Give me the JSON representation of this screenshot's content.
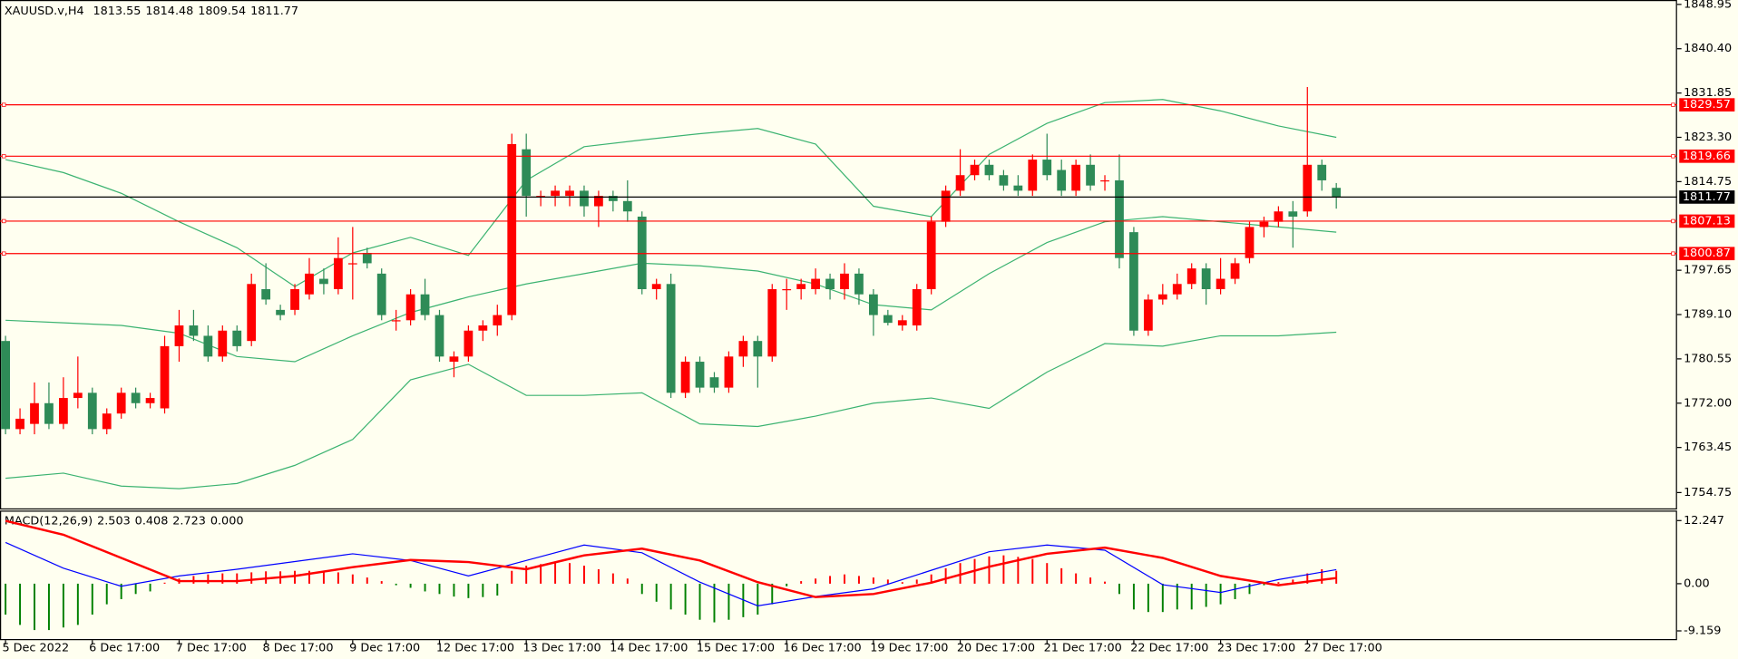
{
  "chart_data": [
    {
      "type": "candlestick",
      "title": "XAUUSD.v,H4",
      "categories": [
        "5 Dec 2022",
        null,
        null,
        null,
        null,
        null,
        "6 Dec 17:00",
        null,
        null,
        null,
        null,
        null,
        "7 Dec 17:00",
        null,
        null,
        null,
        null,
        null,
        "8 Dec 17:00",
        null,
        null,
        null,
        null,
        null,
        "9 Dec 17:00",
        null,
        null,
        null,
        null,
        null,
        "12 Dec 17:00",
        null,
        null,
        null,
        null,
        null,
        "13 Dec 17:00",
        null,
        null,
        null,
        null,
        null,
        "14 Dec 17:00",
        null,
        null,
        null,
        null,
        null,
        "15 Dec 17:00",
        null,
        null,
        null,
        null,
        null,
        "16 Dec 17:00",
        null,
        null,
        null,
        null,
        null,
        "19 Dec 17:00",
        null,
        null,
        null,
        null,
        null,
        "20 Dec 17:00",
        null,
        null,
        null,
        null,
        null,
        "21 Dec 17:00",
        null,
        null,
        null,
        null,
        null,
        "22 Dec 17:00",
        null,
        null,
        null,
        null,
        null,
        "23 Dec 17:00",
        null,
        null,
        null,
        null,
        null,
        "27 Dec 17:00",
        null,
        null
      ],
      "open": [
        1784,
        1767,
        1768,
        1772,
        1768,
        1773,
        1774,
        1767,
        1770,
        1774,
        1772,
        1771,
        1783,
        1787,
        1785,
        1781,
        1786,
        1784,
        1794,
        1790,
        1790,
        1793,
        1796,
        1794,
        1799,
        1801,
        1797,
        1788,
        1788,
        1793,
        1789,
        1780,
        1781,
        1786,
        1787,
        1789,
        1821,
        1812,
        1812,
        1812,
        1813,
        1810,
        1812,
        1811,
        1808,
        1794,
        1795,
        1774,
        1780,
        1777,
        1775,
        1781,
        1784,
        1781,
        1794,
        1794,
        1794,
        1796,
        1794,
        1797,
        1793,
        1789,
        1787,
        1787,
        1794,
        1807,
        1813,
        1816,
        1818,
        1816,
        1814,
        1813,
        1819,
        1817,
        1813,
        1818,
        1815,
        1815,
        1805,
        1786,
        1792,
        1793,
        1795,
        1798,
        1794,
        1796,
        1800,
        1806,
        1807,
        1809,
        1809,
        1818,
        1813.55
      ],
      "high": [
        1785,
        1771,
        1776,
        1776,
        1777,
        1781,
        1775,
        1771,
        1775,
        1775,
        1774,
        1785,
        1790,
        1790,
        1787,
        1787,
        1787,
        1797,
        1799,
        1791,
        1795,
        1800,
        1798,
        1804,
        1806,
        1802,
        1798,
        1790,
        1794,
        1796,
        1790,
        1782,
        1787,
        1788,
        1791,
        1824,
        1824,
        1813,
        1814,
        1814,
        1814,
        1813,
        1813,
        1815,
        1809,
        1796,
        1797,
        1781,
        1781,
        1778,
        1782,
        1785,
        1785,
        1795,
        1796,
        1796,
        1798,
        1797,
        1799,
        1798,
        1794,
        1790,
        1789,
        1795,
        1808,
        1814,
        1821,
        1819,
        1819,
        1817,
        1816,
        1820,
        1824,
        1819,
        1819,
        1820,
        1816,
        1820,
        1806,
        1793,
        1795,
        1797,
        1799,
        1799,
        1800,
        1800,
        1807,
        1808,
        1810,
        1811,
        1833,
        1819,
        1814.48
      ],
      "low": [
        1766,
        1766,
        1766,
        1767,
        1767,
        1771,
        1766,
        1766,
        1769,
        1771,
        1771,
        1770,
        1780,
        1784,
        1780,
        1780,
        1782,
        1783,
        1791,
        1788,
        1789,
        1792,
        1793,
        1793,
        1792,
        1798,
        1788,
        1786,
        1787,
        1788,
        1780,
        1777,
        1780,
        1784,
        1785,
        1788,
        1808,
        1810,
        1810,
        1810,
        1808,
        1806,
        1809,
        1807,
        1793,
        1792,
        1773,
        1773,
        1774,
        1774,
        1774,
        1779,
        1775,
        1780,
        1790,
        1792,
        1793,
        1792,
        1792,
        1791,
        1785,
        1787,
        1786,
        1786,
        1793,
        1806,
        1812,
        1815,
        1815,
        1813,
        1812,
        1812,
        1815,
        1812,
        1812,
        1813,
        1813,
        1798,
        1785,
        1785,
        1791,
        1792,
        1794,
        1791,
        1793,
        1795,
        1799,
        1804,
        1806,
        1802,
        1808,
        1813,
        1809.54
      ],
      "close": [
        1767,
        1769,
        1772,
        1768,
        1773,
        1774,
        1767,
        1770,
        1774,
        1772,
        1773,
        1783,
        1787,
        1785,
        1781,
        1786,
        1783,
        1795,
        1792,
        1789,
        1794,
        1797,
        1795,
        1800,
        1799,
        1799,
        1789,
        1788,
        1793,
        1789,
        1781,
        1781,
        1786,
        1787,
        1789,
        1822,
        1812,
        1812,
        1813,
        1813,
        1810,
        1812,
        1811,
        1809,
        1794,
        1795,
        1774,
        1780,
        1775,
        1775,
        1781,
        1784,
        1781,
        1794,
        1794,
        1795,
        1796,
        1794,
        1797,
        1793,
        1789,
        1787.5,
        1788,
        1794,
        1807,
        1813,
        1816,
        1818,
        1816,
        1814,
        1813,
        1819,
        1816,
        1813,
        1818,
        1814,
        1815,
        1800,
        1786,
        1792,
        1793,
        1795,
        1798,
        1794,
        1796,
        1799,
        1806,
        1807,
        1809,
        1808,
        1818,
        1815,
        1811.77
      ],
      "up_color": "#ff0000",
      "down_color": "#2e8b57",
      "ylim": [
        1751.7,
        1849.8
      ],
      "yticks": [
        1848.95,
        {
          "value": 1840.4,
          "label": "1840.40"
        },
        1831.85,
        {
          "value": 1823.3,
          "label": "1823.30"
        },
        1814.75,
        1797.65,
        {
          "value": 1789.1,
          "label": "1789.10"
        },
        1780.55,
        {
          "value": 1772,
          "label": "1772.00"
        },
        1763.45,
        1754.75
      ],
      "hlines": [
        1829.57,
        1819.66,
        1807.13,
        1800.87
      ],
      "hline_color": "#ff0000",
      "last_color": "#000000",
      "bands": {
        "color": "#3cb371",
        "x": [
          0,
          4,
          8,
          12,
          16,
          20,
          24,
          28,
          32,
          36,
          40,
          44,
          48,
          52,
          56,
          60,
          64,
          68,
          72,
          76,
          80,
          84,
          88,
          92
        ],
        "upper": [
          1819,
          1816.5,
          1812.5,
          1807,
          1802,
          1794.5,
          1801,
          1804,
          1800.5,
          1815,
          1821.5,
          1822.8,
          1824,
          1825,
          1822,
          1810,
          1808,
          1820,
          1826,
          1830,
          1830.6,
          1828.4,
          1825.5,
          1823.3
        ],
        "middle": [
          1788,
          1787.5,
          1787,
          1785.5,
          1781,
          1780,
          1785,
          1789.5,
          1792.5,
          1795,
          1797,
          1799,
          1798.5,
          1797.5,
          1795,
          1791,
          1790,
          1797,
          1803,
          1807,
          1808,
          1807,
          1806,
          1805
        ],
        "lower": [
          1757.5,
          1758.5,
          1756,
          1755.5,
          1756.5,
          1760,
          1765,
          1776.5,
          1779.5,
          1773.5,
          1773.5,
          1774,
          1768,
          1767.5,
          1769.5,
          1772,
          1773,
          1771,
          1778,
          1783.5,
          1783,
          1785,
          1785,
          1785.7
        ]
      }
    },
    {
      "type": "macd",
      "title": "MACD(12,26,9)",
      "header_values": [
        2.503,
        0.408,
        2.723,
        {
          "value": 0,
          "label": "0.000"
        }
      ],
      "histogram": [
        -6,
        -8,
        -9,
        -9,
        -8.5,
        -8,
        -6,
        -4,
        -3,
        -2,
        -1.5,
        0.2,
        1,
        1.5,
        1.8,
        2,
        2,
        2.2,
        2.4,
        2.4,
        2.5,
        2.5,
        2.4,
        2.2,
        1.8,
        1.2,
        0.5,
        -0.3,
        -0.8,
        -1.5,
        -2,
        -2.5,
        -2.8,
        -2.6,
        -2.3,
        2.5,
        3.5,
        3.8,
        4,
        4,
        3.5,
        2.8,
        2,
        1,
        -2,
        -3.5,
        -5,
        -6,
        -7,
        -7.5,
        -7,
        -6.5,
        -6,
        -4,
        -0.5,
        0.5,
        1,
        1.5,
        1.8,
        1.5,
        1.2,
        0.8,
        0.3,
        0.8,
        1.8,
        3,
        4,
        4.8,
        5.3,
        5.5,
        5.2,
        4.8,
        4,
        3,
        2,
        1.2,
        0.4,
        -2,
        -5,
        -5.5,
        -5.5,
        -5,
        -5,
        -4.5,
        -4,
        -3,
        -2,
        -0.3,
        0.3,
        0.8,
        2,
        2.8,
        2.503
      ],
      "pos_color": "#ff0000",
      "neg_color": "#008000",
      "lines": {
        "x": [
          0,
          4,
          8,
          12,
          16,
          20,
          24,
          28,
          32,
          36,
          40,
          44,
          48,
          52,
          56,
          60,
          64,
          68,
          72,
          76,
          80,
          84,
          88,
          92
        ],
        "series": [
          {
            "color": "#0000ff",
            "width": 1,
            "values": [
              8,
              3,
              -0.5,
              1.5,
              2.8,
              4.3,
              5.8,
              4.5,
              1.5,
              4.5,
              7.5,
              6,
              0.3,
              -4.3,
              -2.5,
              -1,
              2.6,
              6.2,
              7.5,
              6.5,
              -0.2,
              -1.7,
              0.8,
              2.723
            ]
          },
          {
            "color": "#ff0000",
            "width": 2,
            "values": [
              12.2,
              9.5,
              5,
              0.5,
              0.5,
              1.5,
              3.2,
              4.6,
              4.2,
              2.8,
              5.5,
              6.8,
              4.5,
              0.3,
              -2.6,
              -2,
              0.2,
              3.3,
              5.8,
              7,
              5,
              1.5,
              -0.3,
              1.1
            ]
          }
        ]
      },
      "ylim": [
        -10.96,
        13.97
      ],
      "yticks": [
        12.247,
        {
          "value": 0,
          "label": "0.00"
        },
        -9.159
      ]
    }
  ]
}
